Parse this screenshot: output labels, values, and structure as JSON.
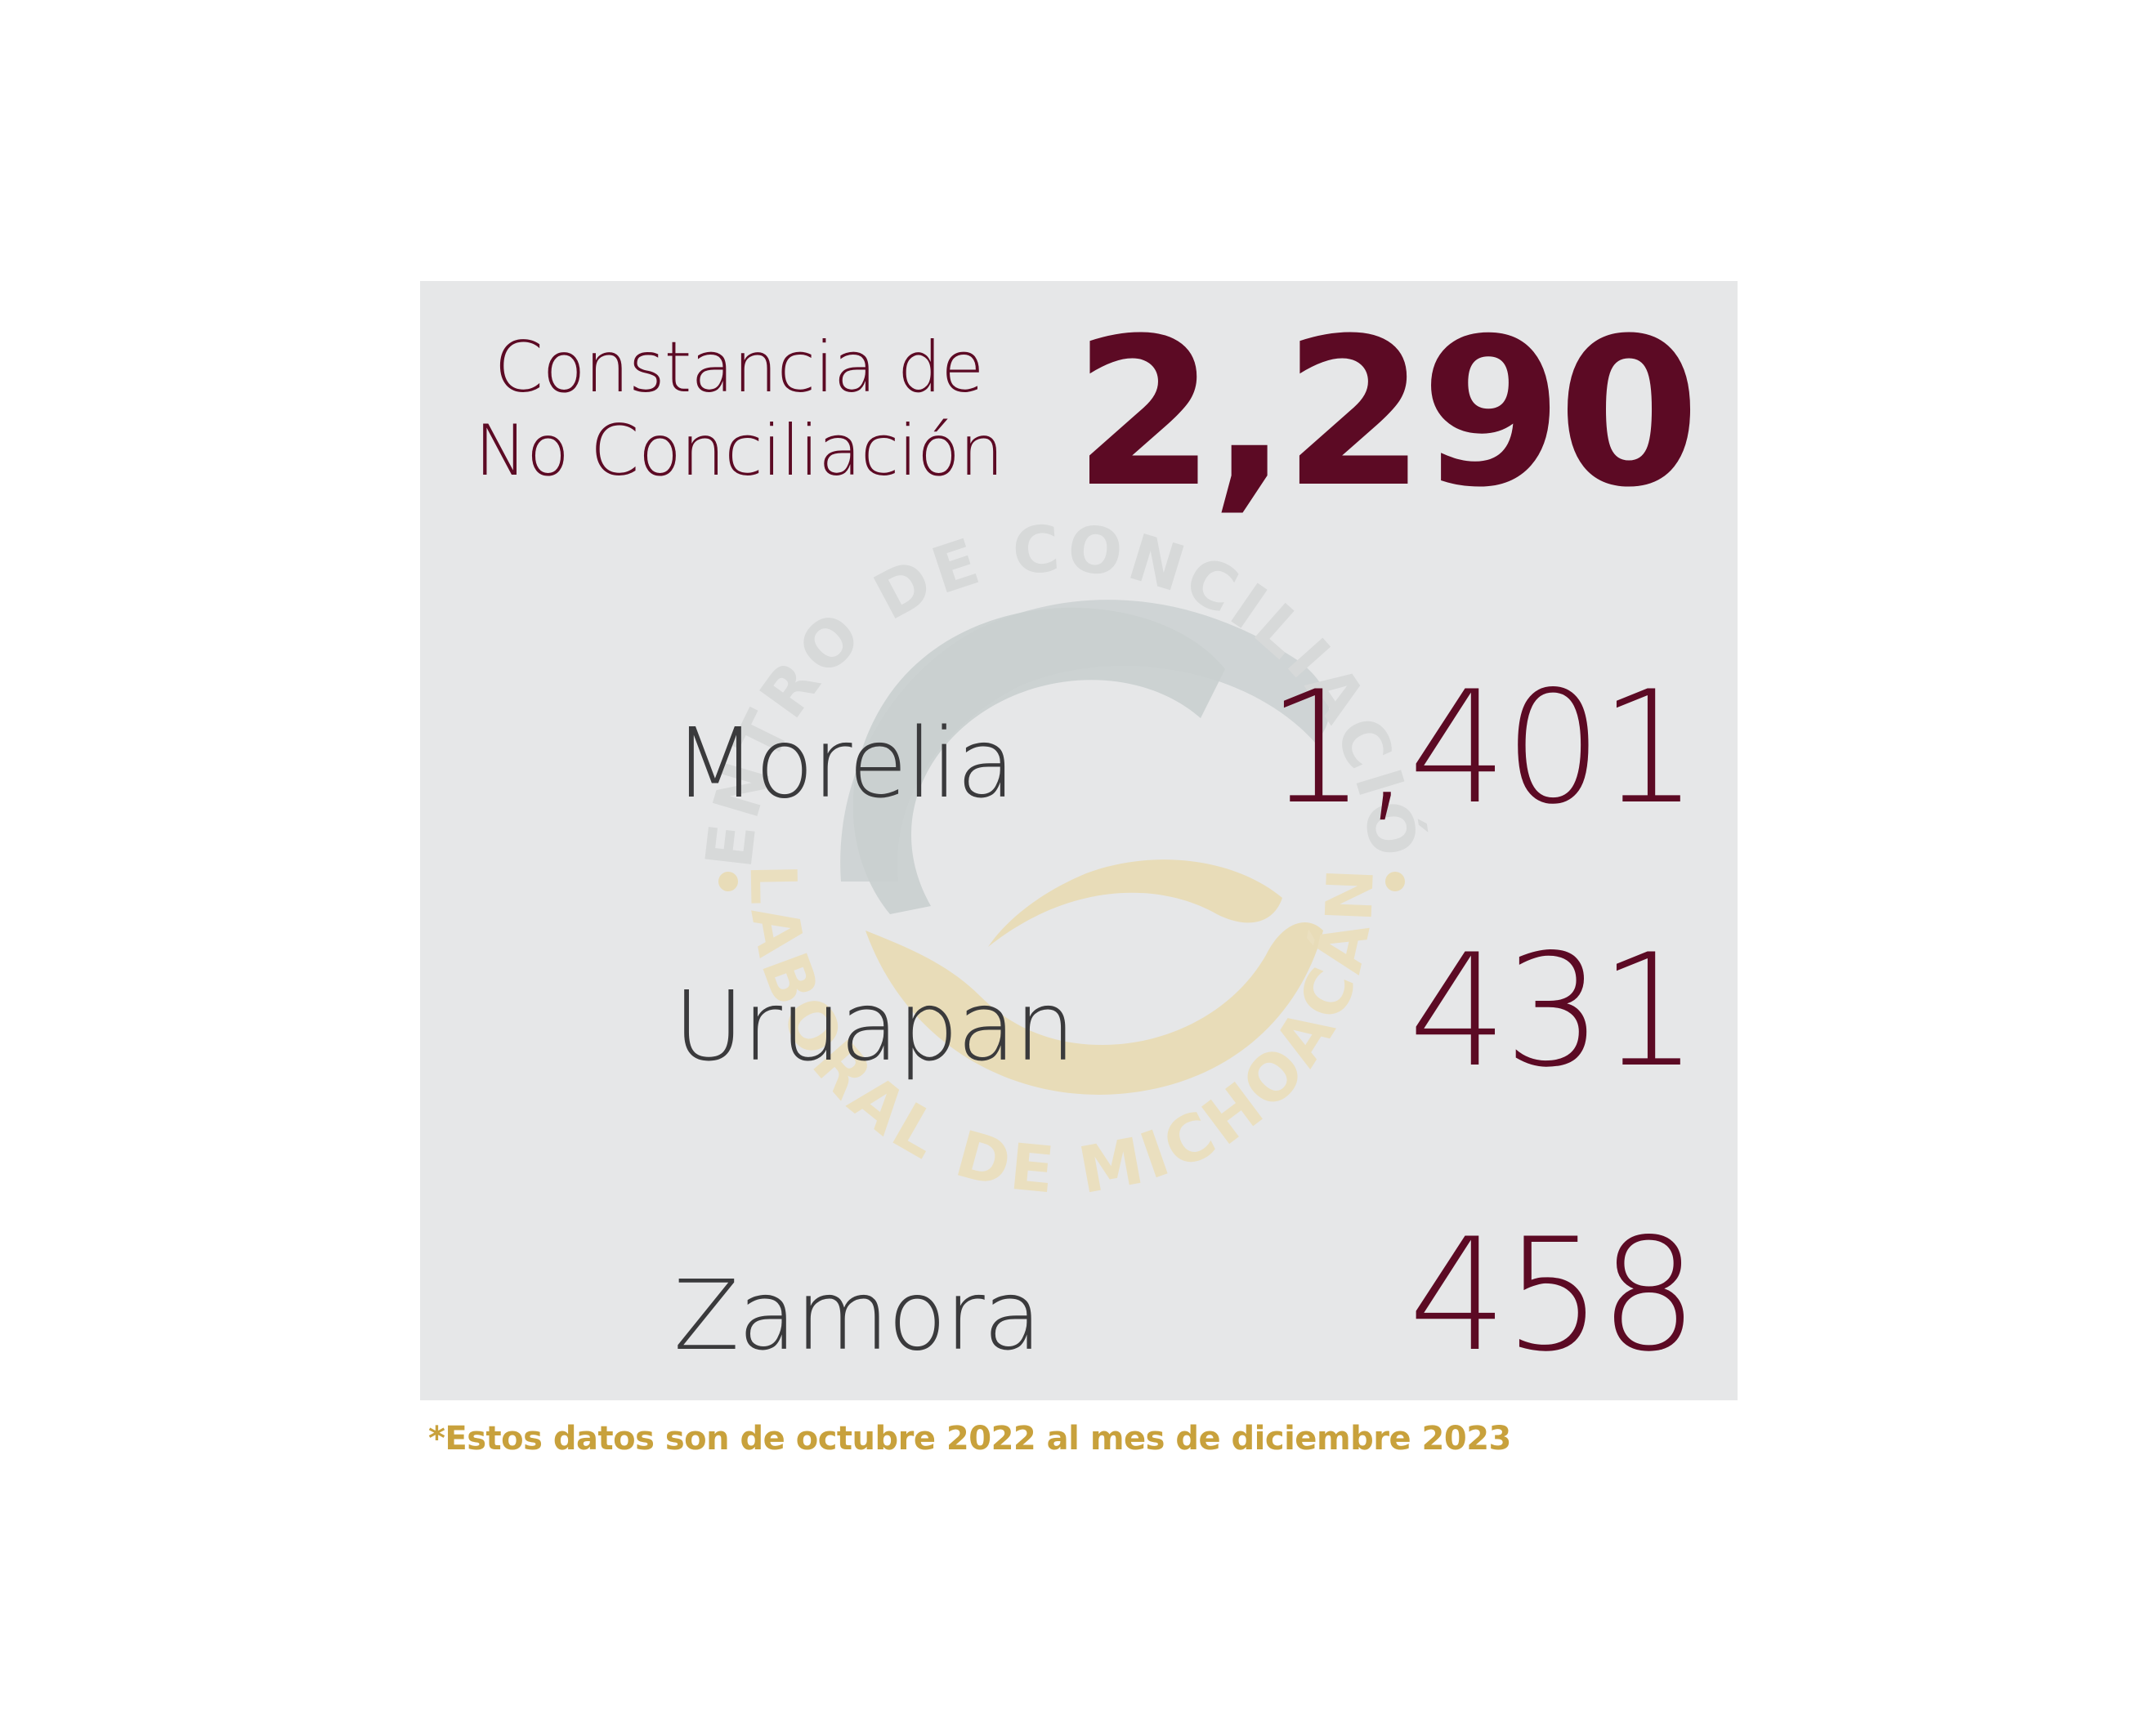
{
  "header": {
    "title_line1": "Constancia de",
    "title_line2": "No Conciliación",
    "total": "2,290"
  },
  "rows": [
    {
      "label": "Morelia",
      "value": "1,401"
    },
    {
      "label": "Uruapan",
      "value": "431"
    },
    {
      "label": "Zamora",
      "value": "458"
    }
  ],
  "watermark": {
    "text_top": "CENTRO DE CONCILIACIÓN",
    "text_bottom": "LABORAL DE MICHOACÁN"
  },
  "footnote": "*Estos datos son de octubre 2022 al mes de diciembre 2023",
  "colors": {
    "primary": "#5c0a24",
    "text_dark": "#3a3a3c",
    "gold": "#c8a13c",
    "panel": "#e6e7e8",
    "watermark_gray": "#c9cfcf",
    "watermark_gold": "#e8dcb8"
  }
}
